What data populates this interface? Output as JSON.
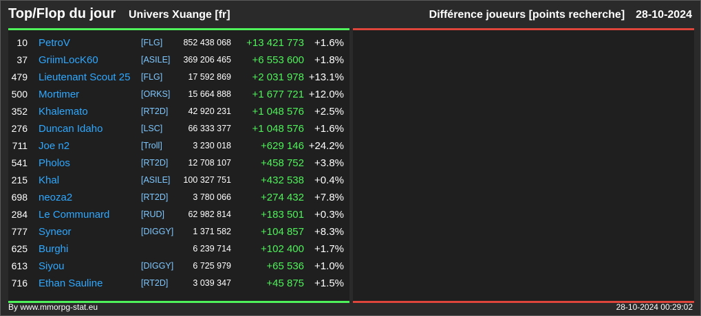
{
  "header": {
    "title": "Top/Flop du jour",
    "universe": "Univers Xuange [fr]",
    "metric": "Différence joueurs [points recherche]",
    "date": "28-10-2024"
  },
  "colors": {
    "positive": "#4ff25a",
    "negative": "#e0453c",
    "player_name": "#2fa8ff",
    "alliance": "#7fc8ff"
  },
  "top_list": [
    {
      "rank": "10",
      "name": "PetroV",
      "alliance": "[FLG]",
      "points": "852 438 068",
      "diff": "+13 421 773",
      "pct": "+1.6%"
    },
    {
      "rank": "37",
      "name": "GriimLocK60",
      "alliance": "[ASILE]",
      "points": "369 206 465",
      "diff": "+6 553 600",
      "pct": "+1.8%"
    },
    {
      "rank": "479",
      "name": "Lieutenant Scout 25",
      "alliance": "[FLG]",
      "points": "17 592 869",
      "diff": "+2 031 978",
      "pct": "+13.1%"
    },
    {
      "rank": "500",
      "name": "Mortimer",
      "alliance": "[ORKS]",
      "points": "15 664 888",
      "diff": "+1 677 721",
      "pct": "+12.0%"
    },
    {
      "rank": "352",
      "name": "Khalemato",
      "alliance": "[RT2D]",
      "points": "42 920 231",
      "diff": "+1 048 576",
      "pct": "+2.5%"
    },
    {
      "rank": "276",
      "name": "Duncan Idaho",
      "alliance": "[LSC]",
      "points": "66 333 377",
      "diff": "+1 048 576",
      "pct": "+1.6%"
    },
    {
      "rank": "711",
      "name": "Joe n2",
      "alliance": "[Troll]",
      "points": "3 230 018",
      "diff": "+629 146",
      "pct": "+24.2%"
    },
    {
      "rank": "541",
      "name": "Pholos",
      "alliance": "[RT2D]",
      "points": "12 708 107",
      "diff": "+458 752",
      "pct": "+3.8%"
    },
    {
      "rank": "215",
      "name": "Khal",
      "alliance": "[ASILE]",
      "points": "100 327 751",
      "diff": "+432 538",
      "pct": "+0.4%"
    },
    {
      "rank": "698",
      "name": "neoza2",
      "alliance": "[RT2D]",
      "points": "3 780 066",
      "diff": "+274 432",
      "pct": "+7.8%"
    },
    {
      "rank": "284",
      "name": "Le Communard",
      "alliance": "[RUD]",
      "points": "62 982 814",
      "diff": "+183 501",
      "pct": "+0.3%"
    },
    {
      "rank": "777",
      "name": "Syneor",
      "alliance": "[DIGGY]",
      "points": "1 371 582",
      "diff": "+104 857",
      "pct": "+8.3%"
    },
    {
      "rank": "625",
      "name": "Burghi",
      "alliance": "",
      "points": "6 239 714",
      "diff": "+102 400",
      "pct": "+1.7%"
    },
    {
      "rank": "613",
      "name": "Siyou",
      "alliance": "[DIGGY]",
      "points": "6 725 979",
      "diff": "+65 536",
      "pct": "+1.0%"
    },
    {
      "rank": "716",
      "name": "Ethan Sauline",
      "alliance": "[RT2D]",
      "points": "3 039 347",
      "diff": "+45 875",
      "pct": "+1.5%"
    }
  ],
  "flop_list": [],
  "footer": {
    "credit": "By www.mmorpg-stat.eu",
    "timestamp": "28-10-2024 00:29:02"
  }
}
